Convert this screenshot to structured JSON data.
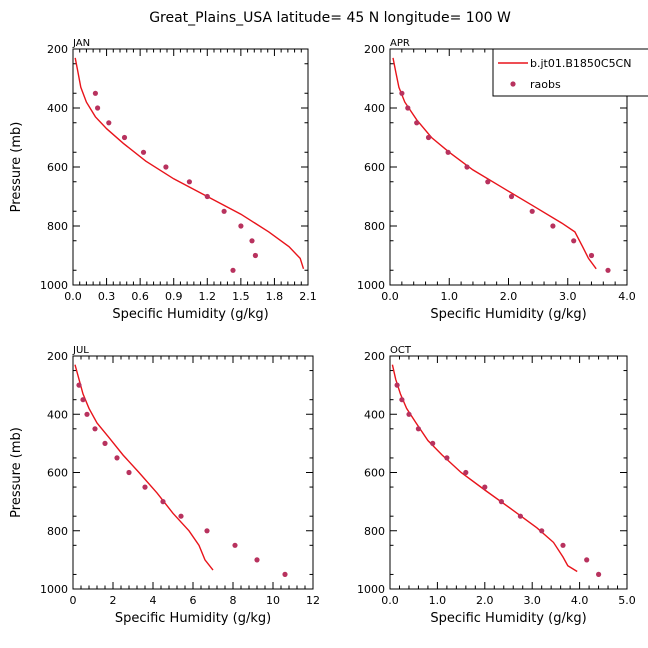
{
  "figure": {
    "title": "Great_Plains_USA  latitude= 45 N longitude= 100 W"
  },
  "chart_data": [
    {
      "type": "line",
      "panel": "JAN",
      "xlabel": "Specific Humidity (g/kg)",
      "ylabel": "Pressure (mb)",
      "xlim": [
        0,
        2.1
      ],
      "xticks": [
        "0.0",
        "0.3",
        "0.6",
        "0.9",
        "1.2",
        "1.5",
        "1.8",
        "2.1"
      ],
      "ylim": [
        1000,
        200
      ],
      "yticks": [
        "200",
        "400",
        "600",
        "800",
        "1000"
      ],
      "series": [
        {
          "name": "b.jt01.B1850C5CN",
          "kind": "line",
          "color": "#e8141b",
          "points": [
            [
              0.02,
              230
            ],
            [
              0.04,
              270
            ],
            [
              0.07,
              330
            ],
            [
              0.12,
              380
            ],
            [
              0.2,
              430
            ],
            [
              0.3,
              470
            ],
            [
              0.45,
              520
            ],
            [
              0.65,
              580
            ],
            [
              0.9,
              640
            ],
            [
              1.2,
              700
            ],
            [
              1.5,
              760
            ],
            [
              1.75,
              820
            ],
            [
              1.93,
              870
            ],
            [
              2.03,
              910
            ],
            [
              2.06,
              945
            ]
          ]
        },
        {
          "name": "raobs",
          "kind": "points",
          "color": "#b8325e",
          "points": [
            [
              0.2,
              350
            ],
            [
              0.22,
              400
            ],
            [
              0.32,
              450
            ],
            [
              0.46,
              500
            ],
            [
              0.63,
              550
            ],
            [
              0.83,
              600
            ],
            [
              1.04,
              650
            ],
            [
              1.2,
              700
            ],
            [
              1.35,
              750
            ],
            [
              1.5,
              800
            ],
            [
              1.6,
              850
            ],
            [
              1.63,
              900
            ],
            [
              1.43,
              950
            ]
          ]
        }
      ]
    },
    {
      "type": "line",
      "panel": "APR",
      "xlabel": "Specific Humidity (g/kg)",
      "ylabel": "",
      "xlim": [
        0,
        4.0
      ],
      "xticks": [
        "0.0",
        "1.0",
        "2.0",
        "3.0",
        "4.0"
      ],
      "ylim": [
        1000,
        200
      ],
      "yticks": [
        "200",
        "400",
        "600",
        "800",
        "1000"
      ],
      "series": [
        {
          "name": "b.jt01.B1850C5CN",
          "kind": "line",
          "color": "#e8141b",
          "points": [
            [
              0.05,
              230
            ],
            [
              0.1,
              280
            ],
            [
              0.15,
              330
            ],
            [
              0.25,
              380
            ],
            [
              0.45,
              440
            ],
            [
              0.7,
              500
            ],
            [
              1.0,
              550
            ],
            [
              1.4,
              610
            ],
            [
              1.9,
              670
            ],
            [
              2.4,
              730
            ],
            [
              2.9,
              790
            ],
            [
              3.12,
              820
            ],
            [
              3.25,
              870
            ],
            [
              3.35,
              910
            ],
            [
              3.48,
              945
            ]
          ]
        },
        {
          "name": "raobs",
          "kind": "points",
          "color": "#b8325e",
          "points": [
            [
              0.2,
              350
            ],
            [
              0.3,
              400
            ],
            [
              0.45,
              450
            ],
            [
              0.65,
              500
            ],
            [
              0.98,
              550
            ],
            [
              1.3,
              600
            ],
            [
              1.65,
              650
            ],
            [
              2.05,
              700
            ],
            [
              2.4,
              750
            ],
            [
              2.75,
              800
            ],
            [
              3.1,
              850
            ],
            [
              3.4,
              900
            ],
            [
              3.68,
              950
            ]
          ]
        }
      ]
    },
    {
      "type": "line",
      "panel": "JUL",
      "xlabel": "Specific Humidity (g/kg)",
      "ylabel": "Pressure (mb)",
      "xlim": [
        0,
        12
      ],
      "xticks": [
        "0",
        "2",
        "4",
        "6",
        "8",
        "10",
        "12"
      ],
      "ylim": [
        1000,
        200
      ],
      "yticks": [
        "200",
        "400",
        "600",
        "800",
        "1000"
      ],
      "series": [
        {
          "name": "b.jt01.B1850C5CN",
          "kind": "line",
          "color": "#e8141b",
          "points": [
            [
              0.1,
              230
            ],
            [
              0.3,
              280
            ],
            [
              0.5,
              330
            ],
            [
              0.8,
              380
            ],
            [
              1.2,
              430
            ],
            [
              1.8,
              480
            ],
            [
              2.5,
              540
            ],
            [
              3.3,
              600
            ],
            [
              4.2,
              670
            ],
            [
              5.0,
              740
            ],
            [
              5.8,
              800
            ],
            [
              6.3,
              850
            ],
            [
              6.6,
              900
            ],
            [
              7.0,
              935
            ]
          ]
        },
        {
          "name": "raobs",
          "kind": "points",
          "color": "#b8325e",
          "points": [
            [
              0.3,
              300
            ],
            [
              0.5,
              350
            ],
            [
              0.7,
              400
            ],
            [
              1.1,
              450
            ],
            [
              1.6,
              500
            ],
            [
              2.2,
              550
            ],
            [
              2.8,
              600
            ],
            [
              3.6,
              650
            ],
            [
              4.5,
              700
            ],
            [
              5.4,
              750
            ],
            [
              6.7,
              800
            ],
            [
              8.1,
              850
            ],
            [
              9.2,
              900
            ],
            [
              10.6,
              950
            ]
          ]
        }
      ]
    },
    {
      "type": "line",
      "panel": "OCT",
      "xlabel": "Specific Humidity (g/kg)",
      "ylabel": "",
      "xlim": [
        0,
        5.0
      ],
      "xticks": [
        "0.0",
        "1.0",
        "2.0",
        "3.0",
        "4.0",
        "5.0"
      ],
      "ylim": [
        1000,
        200
      ],
      "yticks": [
        "200",
        "400",
        "600",
        "800",
        "1000"
      ],
      "series": [
        {
          "name": "b.jt01.B1850C5CN",
          "kind": "line",
          "color": "#e8141b",
          "points": [
            [
              0.05,
              230
            ],
            [
              0.12,
              280
            ],
            [
              0.22,
              330
            ],
            [
              0.35,
              380
            ],
            [
              0.55,
              430
            ],
            [
              0.8,
              490
            ],
            [
              1.1,
              540
            ],
            [
              1.5,
              600
            ],
            [
              2.0,
              660
            ],
            [
              2.6,
              730
            ],
            [
              3.1,
              790
            ],
            [
              3.45,
              840
            ],
            [
              3.65,
              890
            ],
            [
              3.75,
              920
            ],
            [
              3.95,
              940
            ]
          ]
        },
        {
          "name": "raobs",
          "kind": "points",
          "color": "#b8325e",
          "points": [
            [
              0.15,
              300
            ],
            [
              0.25,
              350
            ],
            [
              0.4,
              400
            ],
            [
              0.6,
              450
            ],
            [
              0.9,
              500
            ],
            [
              1.2,
              550
            ],
            [
              1.6,
              600
            ],
            [
              2.0,
              650
            ],
            [
              2.35,
              700
            ],
            [
              2.75,
              750
            ],
            [
              3.2,
              800
            ],
            [
              3.65,
              850
            ],
            [
              4.15,
              900
            ],
            [
              4.4,
              950
            ]
          ]
        }
      ]
    }
  ],
  "legend": {
    "entries": [
      {
        "label": "b.jt01.B1850C5CN",
        "kind": "line",
        "color": "#e8141b"
      },
      {
        "label": "raobs",
        "kind": "points",
        "color": "#b8325e"
      }
    ]
  }
}
